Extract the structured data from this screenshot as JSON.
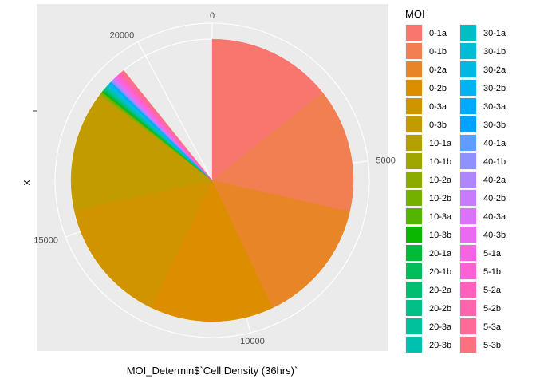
{
  "chart_data": {
    "type": "pie",
    "coord": "polar",
    "xlabel": "MOI_Determin$`Cell Density (36hrs)`",
    "ylabel": "x",
    "theta_ticks": [
      0,
      5000,
      10000,
      15000,
      20000
    ],
    "theta_tick_labels": [
      "0",
      "5000",
      "10000",
      "15000",
      "20000"
    ],
    "theta_max": 21700,
    "background": "#ebebeb",
    "grid": true,
    "legend": {
      "title": "MOI",
      "placement": "right",
      "columns": 2
    },
    "categories": [
      "0-1a",
      "0-1b",
      "0-2a",
      "0-2b",
      "0-3a",
      "0-3b",
      "10-1a",
      "10-1b",
      "10-2a",
      "10-2b",
      "10-3a",
      "10-3b",
      "20-1a",
      "20-1b",
      "20-2a",
      "20-2b",
      "20-3a",
      "20-3b",
      "30-1a",
      "30-1b",
      "30-2a",
      "30-2b",
      "30-3a",
      "30-3b",
      "40-1a",
      "40-1b",
      "40-2a",
      "40-2b",
      "40-3a",
      "40-3b",
      "5-1a",
      "5-1b",
      "5-2a",
      "5-2b",
      "5-3a",
      "5-3b"
    ],
    "values": [
      3100,
      3100,
      3120,
      3080,
      3140,
      2950,
      25,
      25,
      25,
      25,
      25,
      25,
      25,
      25,
      25,
      25,
      25,
      25,
      25,
      25,
      25,
      25,
      25,
      25,
      25,
      25,
      25,
      25,
      25,
      25,
      45,
      45,
      45,
      45,
      45,
      45
    ],
    "colors": [
      "#F8766D",
      "#F17F51",
      "#E88526",
      "#DC8D00",
      "#D09400",
      "#C29B00",
      "#B2A100",
      "#A0A600",
      "#8CAB00",
      "#74B000",
      "#54B400",
      "#0CB702",
      "#00BA38",
      "#00BC59",
      "#00BE71",
      "#00C087",
      "#00C19C",
      "#00C1B0",
      "#00BFC4",
      "#00BDD5",
      "#00B9E3",
      "#00B3F1",
      "#00ABFD",
      "#00A3FF",
      "#619CFF",
      "#8F91FF",
      "#AE87FF",
      "#C77CFF",
      "#DB72FB",
      "#EA6AF1",
      "#F564E3",
      "#FC61D5",
      "#FF62BC",
      "#FF65AC",
      "#FF6A98",
      "#FC717F"
    ]
  }
}
